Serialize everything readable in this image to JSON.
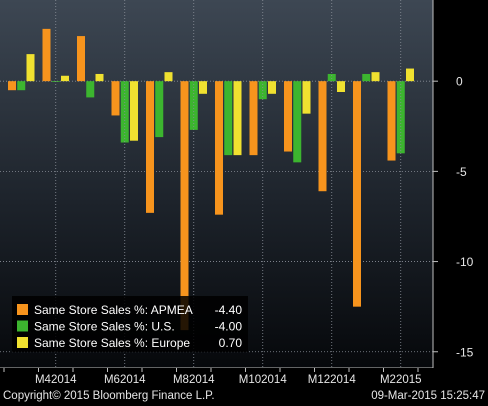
{
  "chart_data": {
    "type": "bar",
    "ylim": [
      -15.9,
      4.5
    ],
    "yticks": [
      0,
      -5,
      -10,
      -15
    ],
    "ytick_labels": [
      "0",
      "-5",
      "-10",
      "-15"
    ],
    "xtick_labels": [
      "M42014",
      "M62014",
      "M82014",
      "M102014",
      "M122014",
      "M22015"
    ],
    "xtick_periods": [
      2,
      4,
      6,
      8,
      10,
      12
    ],
    "grid": true,
    "legend_position": "bottom-left",
    "categories": [
      "M32014",
      "M42014",
      "M52014",
      "M62014",
      "M72014",
      "M82014",
      "M92014",
      "M102014",
      "M112014",
      "M122014",
      "M12015",
      "M22015"
    ],
    "series": [
      {
        "name": "Same Store Sales %: APMEA",
        "legend_value": "-4.40",
        "color": "#f7941d",
        "values": [
          -0.5,
          2.9,
          2.5,
          -1.9,
          -7.3,
          -13.8,
          -7.4,
          -4.1,
          -3.9,
          -6.1,
          -12.5,
          -4.4
        ]
      },
      {
        "name": "Same Store Sales %: U.S.",
        "legend_value": "-4.00",
        "color": "#3cb52f",
        "values": [
          -0.5,
          0.0,
          -0.9,
          -3.4,
          -3.1,
          -2.7,
          -4.1,
          -1.0,
          -4.5,
          0.4,
          0.4,
          -4.0
        ]
      },
      {
        "name": "Same Store Sales %: Europe",
        "legend_value": "0.70",
        "color": "#f0e130",
        "values": [
          1.5,
          0.3,
          0.4,
          -3.3,
          0.5,
          -0.7,
          -4.1,
          -0.7,
          -1.8,
          -0.6,
          0.5,
          0.7
        ]
      }
    ]
  },
  "footer": {
    "copyright": "Copyright© 2015 Bloomberg Finance L.P.",
    "timestamp": "09-Mar-2015 15:25:47"
  }
}
